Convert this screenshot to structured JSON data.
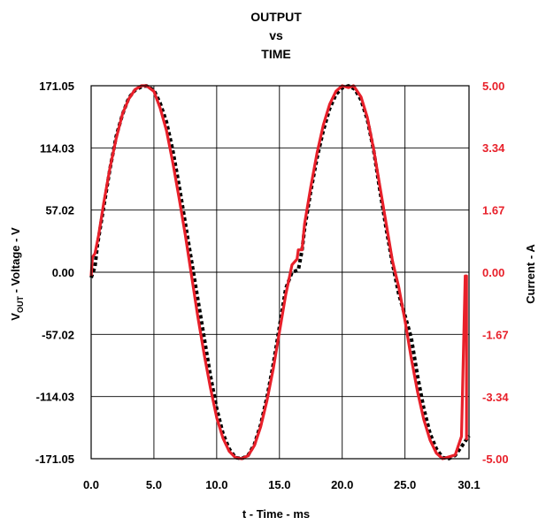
{
  "chart_data": {
    "type": "line",
    "title_lines": [
      "OUTPUT",
      "vs",
      "TIME"
    ],
    "xlabel": "t - Time - ms",
    "ylabel_left": {
      "main": "V",
      "sub": "OUT",
      "rest": " - Voltage - V"
    },
    "ylabel_right": "Current - A",
    "xlim": [
      0.0,
      30.1
    ],
    "ylim_left": [
      -171.05,
      171.05
    ],
    "ylim_right": [
      -5.0,
      5.0
    ],
    "grid": true,
    "x_ticks": [
      {
        "value": 0.0,
        "label": "0.0"
      },
      {
        "value": 5.0,
        "label": "5.0"
      },
      {
        "value": 10.0,
        "label": "10.0"
      },
      {
        "value": 15.0,
        "label": "15.0"
      },
      {
        "value": 20.0,
        "label": "20.0"
      },
      {
        "value": 25.0,
        "label": "25.0"
      },
      {
        "value": 30.1,
        "label": "30.1"
      }
    ],
    "y_left_ticks": [
      {
        "value": 171.05,
        "label": "171.05"
      },
      {
        "value": 114.03,
        "label": "114.03"
      },
      {
        "value": 57.02,
        "label": "57.02"
      },
      {
        "value": 0.0,
        "label": "0.00"
      },
      {
        "value": -57.02,
        "label": "-57.02"
      },
      {
        "value": -114.03,
        "label": "-114.03"
      },
      {
        "value": -171.05,
        "label": "-171.05"
      }
    ],
    "y_right_ticks": [
      {
        "value": 5.0,
        "label": "5.00"
      },
      {
        "value": 3.34,
        "label": "3.34"
      },
      {
        "value": 1.67,
        "label": "1.67"
      },
      {
        "value": 0.0,
        "label": "0.00"
      },
      {
        "value": -1.67,
        "label": "-1.67"
      },
      {
        "value": -3.34,
        "label": "-3.34"
      },
      {
        "value": -5.0,
        "label": "-5.00"
      }
    ],
    "series": [
      {
        "axis": "left",
        "color": "#000000",
        "dash": true,
        "x": [
          0.0,
          0.3,
          0.5,
          1.0,
          1.5,
          2.0,
          2.5,
          3.0,
          3.5,
          4.0,
          4.4,
          5.0,
          5.5,
          6.0,
          6.5,
          7.0,
          7.5,
          8.0,
          8.5,
          9.0,
          9.5,
          10.0,
          10.5,
          11.0,
          11.5,
          12.0,
          12.5,
          13.0,
          13.5,
          14.0,
          14.5,
          15.0,
          15.5,
          16.0,
          16.5,
          16.8,
          17.0,
          17.5,
          18.0,
          18.5,
          19.0,
          19.5,
          20.0,
          20.5,
          21.0,
          21.5,
          22.0,
          22.5,
          23.0,
          23.5,
          24.0,
          24.5,
          25.0,
          25.5,
          26.0,
          26.5,
          27.0,
          27.5,
          28.0,
          28.5,
          29.0,
          29.5,
          29.8,
          30.1
        ],
        "y": [
          -5,
          5,
          25,
          60,
          95,
          125,
          145,
          160,
          167,
          170,
          171,
          167,
          155,
          138,
          112,
          80,
          45,
          10,
          -25,
          -60,
          -95,
          -125,
          -148,
          -162,
          -170,
          -171,
          -168,
          -158,
          -140,
          -115,
          -85,
          -50,
          -15,
          0,
          2,
          20,
          40,
          75,
          105,
          130,
          150,
          163,
          169,
          171,
          168,
          158,
          140,
          112,
          75,
          40,
          8,
          -20,
          -40,
          -60,
          -95,
          -125,
          -148,
          -162,
          -170,
          -171,
          -168,
          -160,
          -155,
          -150
        ]
      },
      {
        "axis": "right",
        "color": "#e8202a",
        "dash": false,
        "x": [
          0.0,
          0.1,
          0.3,
          0.6,
          1.0,
          1.5,
          2.0,
          2.5,
          3.0,
          3.5,
          4.0,
          4.4,
          5.0,
          5.5,
          6.0,
          6.5,
          7.0,
          7.5,
          8.0,
          8.5,
          9.0,
          9.5,
          10.0,
          10.5,
          11.0,
          11.5,
          12.0,
          12.5,
          13.0,
          13.5,
          14.0,
          14.5,
          15.0,
          15.5,
          16.0,
          16.4,
          16.5,
          16.8,
          17.0,
          17.5,
          18.0,
          18.5,
          19.0,
          19.5,
          20.0,
          20.5,
          20.9,
          21.5,
          22.0,
          22.5,
          23.0,
          23.5,
          24.0,
          24.5,
          25.0,
          25.5,
          26.0,
          26.5,
          27.0,
          27.5,
          28.0,
          28.5,
          29.0,
          29.5,
          29.8,
          29.9,
          29.9
        ],
        "y": [
          -0.1,
          0.4,
          0.5,
          1.0,
          1.85,
          2.8,
          3.6,
          4.25,
          4.65,
          4.9,
          5.0,
          5.0,
          4.85,
          4.4,
          3.8,
          2.95,
          2.0,
          1.0,
          -0.1,
          -1.2,
          -2.2,
          -3.1,
          -3.9,
          -4.45,
          -4.8,
          -4.97,
          -5.0,
          -4.92,
          -4.65,
          -4.15,
          -3.45,
          -2.6,
          -1.6,
          -0.6,
          0.2,
          0.35,
          0.6,
          0.6,
          1.3,
          2.3,
          3.2,
          3.95,
          4.5,
          4.85,
          5.0,
          4.95,
          5.0,
          4.7,
          4.15,
          3.3,
          2.3,
          1.3,
          0.3,
          -0.4,
          -1.3,
          -2.3,
          -3.2,
          -3.95,
          -4.5,
          -4.85,
          -5.0,
          -4.95,
          -4.9,
          -4.4,
          -0.1,
          -0.1,
          -4.5
        ]
      }
    ]
  },
  "colors": {
    "left_axis": "#000000",
    "right_axis": "#e8202a",
    "grid": "#000000"
  }
}
